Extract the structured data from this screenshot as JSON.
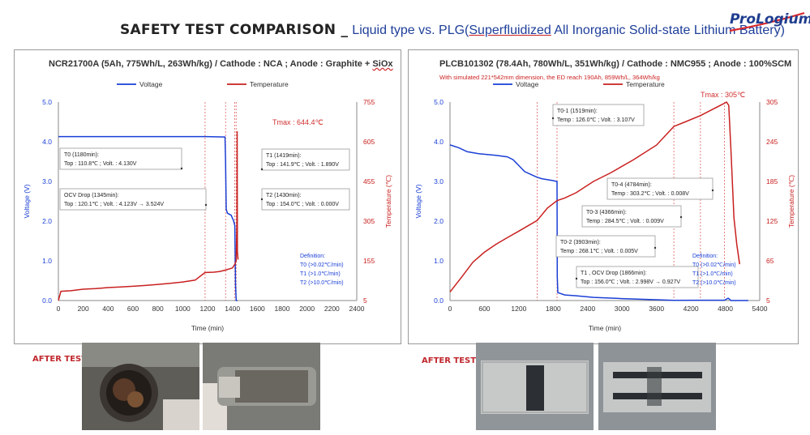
{
  "header": {
    "title_main": "SAFETY TEST COMPARISON _",
    "title_sub_a": "Liquid type vs. PLG(",
    "title_sub_b": "Superfluidized",
    "title_sub_c": " All Inorganic Solid-state Lithium Battery)",
    "logo_text": "ProLogium",
    "colors": {
      "title_blue": "#1f3f99",
      "logo_blue": "#1f3d8f",
      "after_red": "#c0282d"
    }
  },
  "after_test_label_left": "AFTER TEST",
  "after_test_label_right": "AFTER TEST",
  "chart_data": [
    {
      "type": "line",
      "title_a": "NCR21700A (5Ah, 775Wh/L, 263Wh/kg) / Cathode : NCA ; Anode : Graphite + ",
      "title_b": "SiOx",
      "xlabel": "Time (min)",
      "ylabel_left": "Voltage (V)",
      "ylabel_right": "Temperature (℃)",
      "xlim": [
        0,
        2400
      ],
      "xticks": [
        0,
        200,
        400,
        600,
        800,
        1000,
        1200,
        1400,
        1600,
        1800,
        2000,
        2200,
        2400
      ],
      "ylim_left": [
        0,
        5
      ],
      "yticks_left": [
        "0.0",
        "1.0",
        "2.0",
        "3.0",
        "4.0",
        "5.0"
      ],
      "ylim_right": [
        5,
        755
      ],
      "yticks_right": [
        5,
        155,
        305,
        455,
        605,
        755
      ],
      "legend": [
        "Voltage",
        "Temperature"
      ],
      "legend_position": "top",
      "tmax": "Tmax : 644.4℃",
      "series": [
        {
          "name": "Voltage",
          "axis": "left",
          "color": "#1a3fd6",
          "points": [
            [
              0,
              4.13
            ],
            [
              200,
              4.13
            ],
            [
              400,
              4.13
            ],
            [
              600,
              4.13
            ],
            [
              800,
              4.13
            ],
            [
              1000,
              4.13
            ],
            [
              1180,
              4.13
            ],
            [
              1300,
              4.123
            ],
            [
              1340,
              4.12
            ],
            [
              1345,
              3.52
            ],
            [
              1350,
              2.3
            ],
            [
              1360,
              2.2
            ],
            [
              1390,
              2.15
            ],
            [
              1410,
              2.0
            ],
            [
              1419,
              1.89
            ],
            [
              1425,
              0.4
            ],
            [
              1430,
              0.0
            ],
            [
              1440,
              0.0
            ]
          ]
        },
        {
          "name": "Temperature",
          "axis": "right",
          "color": "#c8201f",
          "points": [
            [
              0,
              5
            ],
            [
              20,
              40
            ],
            [
              100,
              42
            ],
            [
              200,
              48
            ],
            [
              300,
              50
            ],
            [
              400,
              54
            ],
            [
              500,
              56
            ],
            [
              600,
              59
            ],
            [
              700,
              62
            ],
            [
              800,
              66
            ],
            [
              900,
              70
            ],
            [
              1000,
              75
            ],
            [
              1100,
              82
            ],
            [
              1180,
              110.8
            ],
            [
              1250,
              112
            ],
            [
              1300,
              115
            ],
            [
              1345,
              120.1
            ],
            [
              1400,
              128
            ],
            [
              1419,
              141.9
            ],
            [
              1430,
              154
            ],
            [
              1436,
              300
            ],
            [
              1438,
              644.4
            ],
            [
              1440,
              190
            ],
            [
              1445,
              160
            ]
          ]
        }
      ],
      "markers": [
        1180,
        1345,
        1419,
        1430
      ],
      "annotations": [
        {
          "lines": [
            "T0 (1180min):",
            "Top : 110.8℃ ; Volt. : 4.130V"
          ]
        },
        {
          "lines": [
            "OCV Drop (1345min):",
            "Top : 120.1℃ ; Volt. : 4.123V → 3.524V"
          ]
        },
        {
          "lines": [
            "T1 (1419min):",
            "Top : 141.9℃ ; Volt. : 1.890V"
          ]
        },
        {
          "lines": [
            "T2 (1430min):",
            "Top : 154.0℃ ; Volt. : 0.000V"
          ]
        }
      ],
      "definition": [
        "Definition:",
        "T0 (>0.02℃/min)",
        "T1 (>1.0℃/min)",
        "T2 (>10.0℃/min)"
      ]
    },
    {
      "type": "line",
      "title_a": "PLCB101302 (78.4Ah, 780Wh/L, 351Wh/kg) / Cathode : NMC955 ; Anode : 100%SCM",
      "subtitle": "With simulated 221*542mm dimension, the ED reach 190Ah, 859Wh/L, 364Wh/kg",
      "xlabel": "Time (min)",
      "ylabel_left": "Voltage (V)",
      "ylabel_right": "Temperature (℃)",
      "xlim": [
        0,
        5400
      ],
      "xticks": [
        0,
        600,
        1200,
        1800,
        2400,
        3000,
        3600,
        4200,
        4800,
        5400
      ],
      "ylim_left": [
        0,
        5
      ],
      "yticks_left": [
        "0.0",
        "1.0",
        "2.0",
        "3.0",
        "4.0",
        "5.0"
      ],
      "ylim_right": [
        5,
        305
      ],
      "yticks_right": [
        5,
        65,
        125,
        185,
        245,
        305
      ],
      "legend": [
        "Voltage",
        "Temperature"
      ],
      "legend_position": "top",
      "tmax": "Tmax : 305℃",
      "series": [
        {
          "name": "Voltage",
          "axis": "left",
          "color": "#1a3fd6",
          "points": [
            [
              0,
              3.92
            ],
            [
              150,
              3.85
            ],
            [
              300,
              3.75
            ],
            [
              500,
              3.7
            ],
            [
              800,
              3.66
            ],
            [
              1000,
              3.62
            ],
            [
              1100,
              3.55
            ],
            [
              1200,
              3.4
            ],
            [
              1300,
              3.25
            ],
            [
              1450,
              3.15
            ],
            [
              1519,
              3.107
            ],
            [
              1600,
              3.07
            ],
            [
              1800,
              3.02
            ],
            [
              1866,
              2.998
            ],
            [
              1870,
              0.6
            ],
            [
              1880,
              0.2
            ],
            [
              2000,
              0.14
            ],
            [
              2200,
              0.12
            ],
            [
              2500,
              0.08
            ],
            [
              3000,
              0.05
            ],
            [
              3903,
              0.005
            ],
            [
              4366,
              0.009
            ],
            [
              4784,
              0.008
            ],
            [
              4850,
              0.06
            ],
            [
              4900,
              0.0
            ],
            [
              5200,
              0.0
            ]
          ]
        },
        {
          "name": "Temperature",
          "axis": "right",
          "color": "#c8201f",
          "points": [
            [
              0,
              18
            ],
            [
              200,
              40
            ],
            [
              400,
              63
            ],
            [
              600,
              78
            ],
            [
              800,
              90
            ],
            [
              1000,
              100
            ],
            [
              1200,
              110
            ],
            [
              1519,
              126.0
            ],
            [
              1700,
              145
            ],
            [
              1866,
              156.0
            ],
            [
              2000,
              160
            ],
            [
              2200,
              168
            ],
            [
              2500,
              185
            ],
            [
              2800,
              198
            ],
            [
              3200,
              218
            ],
            [
              3600,
              240
            ],
            [
              3903,
              268.1
            ],
            [
              4100,
              275
            ],
            [
              4366,
              284.5
            ],
            [
              4600,
              295
            ],
            [
              4784,
              303.2
            ],
            [
              4820,
              305
            ],
            [
              4860,
              300
            ],
            [
              4900,
              230
            ],
            [
              4950,
              130
            ],
            [
              5000,
              90
            ],
            [
              5050,
              60
            ]
          ]
        }
      ],
      "markers": [
        1519,
        1866,
        3903,
        4366,
        4784
      ],
      "annotations": [
        {
          "lines": [
            "T0-1 (1519min):",
            "Temp : 126.0℃ ; Volt. : 3.107V"
          ]
        },
        {
          "lines": [
            "T1 , OCV Drop (1866min):",
            "Top : 156.0℃ ; Volt. : 2.998V → 0.927V"
          ]
        },
        {
          "lines": [
            "T0-2 (3903min):",
            "Temp : 268.1℃ ; Volt. : 0.005V"
          ]
        },
        {
          "lines": [
            "T0-3 (4366min):",
            "Temp : 284.5℃ ; Volt. : 0.009V"
          ]
        },
        {
          "lines": [
            "T0-4 (4784min):",
            "Temp : 303.2℃ ; Volt. : 0.008V"
          ]
        }
      ],
      "definition": [
        "Definition:",
        "T0 (>0.02℃/min)",
        "T1 (>1.0℃/min)",
        "T2 (>10.0℃/min)"
      ]
    }
  ]
}
